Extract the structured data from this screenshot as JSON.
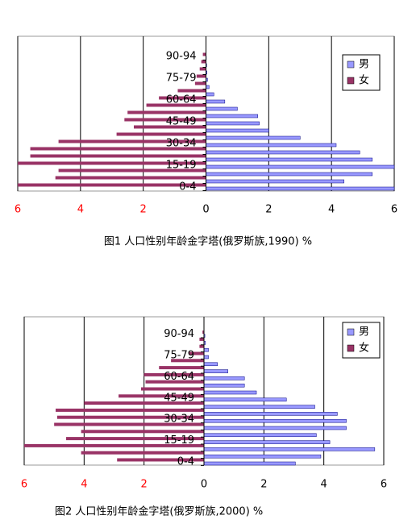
{
  "chart_data": [
    {
      "type": "pyramid",
      "title": "图1  人口性别年龄金字塔(俄罗斯族,1990) %",
      "categories": [
        "0-4",
        null,
        null,
        "15-19",
        null,
        null,
        "30-34",
        null,
        null,
        "45-49",
        null,
        null,
        "60-64",
        null,
        null,
        "75-79",
        null,
        null,
        "90-94"
      ],
      "series": [
        {
          "name": "男",
          "color": "#9999ff",
          "values": [
            6.0,
            4.4,
            5.3,
            6.0,
            5.3,
            4.9,
            4.15,
            3.0,
            2.0,
            1.7,
            1.65,
            1.0,
            0.6,
            0.25,
            0.1,
            0.05,
            0.03,
            0.02,
            0.01
          ]
        },
        {
          "name": "女",
          "color": "#993366",
          "values": [
            -6.0,
            -4.8,
            -4.7,
            -6.0,
            -5.6,
            -5.6,
            -4.7,
            -2.85,
            -2.3,
            -2.6,
            -2.5,
            -1.9,
            -1.5,
            -0.9,
            -0.35,
            -0.3,
            -0.2,
            -0.15,
            -0.1
          ]
        }
      ],
      "xlim": [
        -6,
        6
      ],
      "xticks": [
        {
          "value": -6,
          "label": "6"
        },
        {
          "value": -4,
          "label": "4"
        },
        {
          "value": -2,
          "label": "2"
        },
        0,
        2,
        4,
        6
      ],
      "negative_tick_color": "#ff0000",
      "grid": true,
      "legend": "upper right"
    },
    {
      "type": "pyramid",
      "title": "图2  人口性别年龄金字塔(俄罗斯族,2000) %",
      "categories": [
        "0-4",
        null,
        null,
        "15-19",
        null,
        null,
        "30-34",
        null,
        null,
        "45-49",
        null,
        null,
        "60-64",
        null,
        null,
        "75-79",
        null,
        null,
        "90-94"
      ],
      "series": [
        {
          "name": "男",
          "color": "#9999ff",
          "values": [
            3.05,
            3.9,
            5.7,
            4.2,
            3.75,
            4.75,
            4.75,
            4.45,
            3.7,
            2.75,
            1.75,
            1.35,
            1.35,
            0.8,
            0.45,
            0.15,
            0.15,
            0.05,
            0.03
          ]
        },
        {
          "name": "女",
          "color": "#993366",
          "values": [
            -2.9,
            -4.1,
            -6.0,
            -4.6,
            -4.1,
            -5.0,
            -4.9,
            -4.95,
            -4.0,
            -2.85,
            -2.1,
            -1.95,
            -2.0,
            -1.5,
            -1.1,
            -0.5,
            -0.15,
            -0.15,
            -0.05
          ]
        }
      ],
      "xlim": [
        -6,
        6
      ],
      "xticks": [
        {
          "value": -6,
          "label": "6"
        },
        {
          "value": -4,
          "label": "4"
        },
        {
          "value": -2,
          "label": "2"
        },
        0,
        2,
        4,
        6
      ],
      "negative_tick_color": "#ff0000",
      "grid": true,
      "legend": "upper right"
    }
  ]
}
